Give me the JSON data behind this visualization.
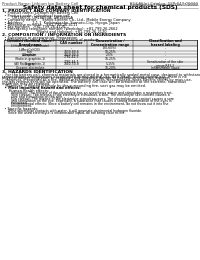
{
  "background_color": "#ffffff",
  "header_left": "Product Name: Lithium Ion Battery Cell",
  "header_right_line1": "BU&AS(e) Catalog: 58R-049-00010",
  "header_right_line2": "Established / Revision: Dec.7.2010",
  "main_title": "Safety data sheet for chemical products (SDS)",
  "section1_title": "1. PRODUCT AND COMPANY IDENTIFICATION",
  "section1_lines": [
    "  • Product name: Lithium Ion Battery Cell",
    "  • Product code: Cylindrical type cell",
    "         UR18650J, UR18650A, UR18650A",
    "  • Company name:    Sanyo Electric Co., Ltd., Mobile Energy Company",
    "  • Address:        2-1-1  Kaminakacho, Sumoto-City, Hyogo, Japan",
    "  • Telephone number:   +81-799-26-4111",
    "  • Fax number:   +81-799-26-4120",
    "  • Emergency telephone number (Weekday): +81-799-26-2662",
    "                               (Night and Holiday): +81-799-26-2120"
  ],
  "section2_title": "2. COMPOSITION / INFORMATION ON INGREDIENTS",
  "section2_intro": "  • Substance or preparation: Preparation",
  "section2_table_header": "  • Information about the chemical nature of product:",
  "table_col_headers": [
    "Common chemical name /\nBrand name",
    "CAS number",
    "Concentration /\nConcentration range",
    "Classification and\nhazard labeling"
  ],
  "table_rows": [
    [
      "Lithium cobalt (laminate)\n(LiMn+Co)(O3)",
      "-",
      "(30-60%)",
      "-"
    ],
    [
      "Iron",
      "7439-89-6",
      "10-25%",
      "-"
    ],
    [
      "Aluminum",
      "7429-90-5",
      "2-5%",
      "-"
    ],
    [
      "Graphite\n(Ratio in graphite-1)\n(All Ratio graphite-1)",
      "7782-42-5\n7782-44-7",
      "10-25%",
      "-"
    ],
    [
      "Copper",
      "7440-50-8",
      "5-15%",
      "Sensitization of the skin\ngroup R43.2"
    ],
    [
      "Organic electrolyte",
      "-",
      "10-20%",
      "Inflammable liquid"
    ]
  ],
  "section3_title": "3. HAZARDS IDENTIFICATION",
  "section3_para": [
    "   For the battery cell, chemical materials are stored in a hermetically sealed metal case, designed to withstand",
    "temperatures and pressures encountered during normal use. As a result, during normal use, there is no",
    "physical danger of ignition or explosion and therefore danger of hazardous materials leakage.",
    "   However, if exposed to a fire, added mechanical shocks, decomposed, wires electric shorts by miss-use,",
    "the gas release vent will be operated. The battery cell case will be breached at the extreme, hazardous",
    "materials may be released.",
    "   Moreover, if heated strongly by the surrounding fire, soot gas may be emitted."
  ],
  "section3_bullet1": "  • Most important hazard and effects:",
  "section3_human": "      Human health effects:",
  "section3_human_lines": [
    "         Inhalation: The release of the electrolyte has an anesthesia action and stimulates a respiratory tract.",
    "         Skin contact: The release of the electrolyte stimulates a skin. The electrolyte skin contact causes a",
    "         sore and stimulation on the skin.",
    "         Eye contact: The release of the electrolyte stimulates eyes. The electrolyte eye contact causes a sore",
    "         and stimulation on the eye. Especially, a substance that causes a strong inflammation of the eyes is",
    "         contained.",
    "         Environmental effects: Since a battery cell remains in the environment, do not throw out it into the",
    "         environment."
  ],
  "section3_specific": "  • Specific hazards:",
  "section3_specific_lines": [
    "      If the electrolyte contacts with water, it will generate detrimental hydrogen fluoride.",
    "      Since the used electrolyte is inflammable liquid, do not bring close to fire."
  ]
}
